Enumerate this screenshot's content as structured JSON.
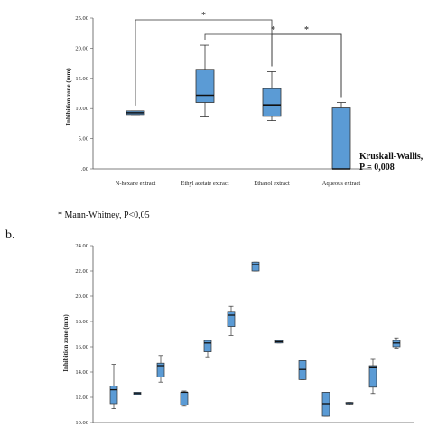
{
  "chart_data": [
    {
      "type": "box",
      "ylabel": "Inhibition zone (mm)",
      "ylim": [
        0,
        25
      ],
      "yticks": [
        "25.00",
        "20.00",
        "15.00",
        "10.00",
        "5.00",
        ".00"
      ],
      "categories": [
        "N-hexane extract",
        "Ethyl acetate extract",
        "Ethanol extract",
        "Aqueous extract"
      ],
      "boxes": [
        {
          "min": 9.0,
          "q1": 9.0,
          "median": 9.3,
          "q3": 9.6,
          "max": 9.6
        },
        {
          "min": 8.6,
          "q1": 11.0,
          "median": 12.2,
          "q3": 16.5,
          "max": 20.5
        },
        {
          "min": 8.0,
          "q1": 8.7,
          "median": 10.6,
          "q3": 13.3,
          "max": 16.1
        },
        {
          "min": 0.0,
          "q1": 0.0,
          "median": 0.0,
          "q3": 10.1,
          "max": 11.0
        }
      ],
      "significance": [
        {
          "from": 0,
          "to": 2,
          "label": "*"
        },
        {
          "from": 1,
          "to": 3,
          "label": "*"
        },
        {
          "from": 2,
          "to": 3,
          "label": "*"
        }
      ],
      "annotation": [
        "Kruskall-Wallis,",
        "P = 0,008"
      ],
      "footnote": "* Mann-Whitney, P<0,05"
    },
    {
      "type": "box",
      "panel_label": "b.",
      "ylabel": "Inhibition zone (mm)",
      "ylim": [
        10,
        24
      ],
      "yticks": [
        "24.00",
        "22.00",
        "20.00",
        "18.00",
        "16.00",
        "14.00",
        "12.00",
        "10.00"
      ],
      "boxes": [
        {
          "min": 11.1,
          "q1": 11.5,
          "median": 12.6,
          "q3": 12.9,
          "max": 14.6
        },
        {
          "min": 12.2,
          "q1": 12.2,
          "median": 12.3,
          "q3": 12.4,
          "max": 12.4
        },
        {
          "min": 13.2,
          "q1": 13.6,
          "median": 14.5,
          "q3": 14.7,
          "max": 15.3
        },
        {
          "min": 11.3,
          "q1": 11.4,
          "median": 12.4,
          "q3": 12.4,
          "max": 12.5
        },
        {
          "min": 15.2,
          "q1": 15.6,
          "median": 16.3,
          "q3": 16.5,
          "max": 16.5
        },
        {
          "min": 16.9,
          "q1": 17.6,
          "median": 18.5,
          "q3": 18.8,
          "max": 19.2
        },
        {
          "min": 22.0,
          "q1": 22.0,
          "median": 22.5,
          "q3": 22.7,
          "max": 22.7
        },
        {
          "min": 16.3,
          "q1": 16.3,
          "median": 16.4,
          "q3": 16.5,
          "max": 16.5
        },
        {
          "min": 13.4,
          "q1": 13.4,
          "median": 14.2,
          "q3": 14.9,
          "max": 14.9
        },
        {
          "min": 10.5,
          "q1": 10.5,
          "median": 11.5,
          "q3": 12.4,
          "max": 12.4
        },
        {
          "min": 11.4,
          "q1": 11.5,
          "median": 11.5,
          "q3": 11.6,
          "max": 11.6
        },
        {
          "min": 12.3,
          "q1": 12.8,
          "median": 14.4,
          "q3": 14.5,
          "max": 15.0
        },
        {
          "min": 15.9,
          "q1": 16.0,
          "median": 16.3,
          "q3": 16.5,
          "max": 16.7
        }
      ]
    }
  ],
  "colors": {
    "box_fill": "#5b9bd5",
    "box_stroke": "#333333",
    "axis": "#555555"
  }
}
